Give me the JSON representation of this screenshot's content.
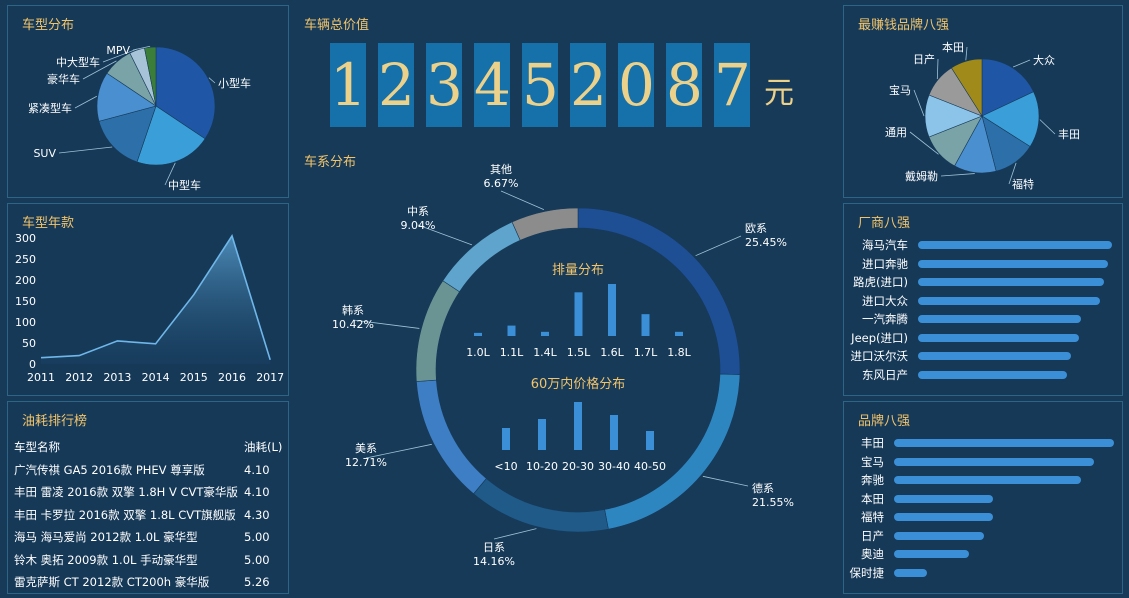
{
  "titles": {
    "car_type": "车型分布",
    "car_year": "车型年款",
    "fuel": "油耗排行榜",
    "total": "车辆总价值",
    "series": "车系分布",
    "displacement": "排量分布",
    "price": "60万内价格分布",
    "top_brands_profit": "最赚钱品牌八强",
    "makers": "厂商八强",
    "brands": "品牌八强"
  },
  "total_value": {
    "digits": [
      "1",
      "2",
      "3",
      "4",
      "5",
      "2",
      "0",
      "8",
      "7"
    ],
    "unit": "元"
  },
  "fuel_table": {
    "headers": [
      "车型名称",
      "油耗(L)"
    ],
    "rows": [
      [
        "广汽传祺 GA5 2016款 PHEV 尊享版",
        "4.10"
      ],
      [
        "丰田 雷凌 2016款 双擎 1.8H V CVT豪华版",
        "4.10"
      ],
      [
        "丰田 卡罗拉 2016款 双擎 1.8L CVT旗舰版",
        "4.30"
      ],
      [
        "海马 海马爱尚 2012款 1.0L 豪华型",
        "5.00"
      ],
      [
        "铃木 奥拓 2009款 1.0L 手动豪华型",
        "5.00"
      ],
      [
        "雷克萨斯 CT 2012款 CT200h 豪华版",
        "5.26"
      ]
    ]
  },
  "chart_data": [
    {
      "id": "car_type",
      "type": "pie",
      "title": "车型分布",
      "categories": [
        "小型车",
        "中型车",
        "SUV",
        "紧凑型车",
        "豪华车",
        "中大型车",
        "MPV"
      ],
      "values": [
        33,
        20,
        15,
        13,
        8,
        4,
        3
      ],
      "colors": [
        "#1f57a6",
        "#3a9fd8",
        "#2d6fa8",
        "#4a8fd0",
        "#7aa3a8",
        "#a7c3d8",
        "#3a7e3a"
      ]
    },
    {
      "id": "car_year",
      "type": "area",
      "title": "车型年款",
      "categories": [
        "2011",
        "2012",
        "2013",
        "2014",
        "2015",
        "2016",
        "2017"
      ],
      "values": [
        15,
        20,
        55,
        48,
        165,
        305,
        10
      ],
      "ylim": [
        0,
        300
      ],
      "yticks": [
        0,
        50,
        100,
        150,
        200,
        250,
        300
      ]
    },
    {
      "id": "series",
      "type": "pie",
      "title": "车系分布",
      "categories": [
        "欧系",
        "德系",
        "日系",
        "美系",
        "韩系",
        "中系",
        "其他"
      ],
      "values": [
        25.45,
        21.55,
        14.16,
        12.71,
        10.42,
        9.04,
        6.67
      ],
      "labels": [
        "25.45%",
        "21.55%",
        "14.16%",
        "12.71%",
        "10.42%",
        "9.04%",
        "6.67%"
      ],
      "colors": [
        "#1e4e93",
        "#2e86c1",
        "#1f5a88",
        "#3d7ec4",
        "#6a9494",
        "#5fa4cc",
        "#8c8c8c"
      ]
    },
    {
      "id": "displacement",
      "type": "bar",
      "title": "排量分布",
      "categories": [
        "1.0L",
        "1.1L",
        "1.4L",
        "1.5L",
        "1.6L",
        "1.7L",
        "1.8L"
      ],
      "values": [
        3,
        10,
        4,
        42,
        50,
        21,
        4
      ]
    },
    {
      "id": "price",
      "type": "bar",
      "title": "60万内价格分布",
      "categories": [
        "<10",
        "10-20",
        "20-30",
        "30-40",
        "40-50"
      ],
      "values": [
        22,
        31,
        48,
        35,
        19
      ]
    },
    {
      "id": "profit_brands",
      "type": "pie",
      "title": "最赚钱品牌八强",
      "categories": [
        "大众",
        "丰田",
        "福特",
        "戴姆勒",
        "通用",
        "宝马",
        "日产",
        "本田"
      ],
      "values": [
        18,
        16,
        12,
        12,
        11,
        12,
        10,
        9
      ],
      "colors": [
        "#1f57a6",
        "#3a9fd8",
        "#2d6fa8",
        "#4a8fd0",
        "#7aa3a8",
        "#8bc4e8",
        "#9a9a9a",
        "#a08b1a"
      ]
    },
    {
      "id": "makers",
      "type": "bar",
      "title": "厂商八强",
      "categories": [
        "海马汽车",
        "进口奔驰",
        "路虎(进口)",
        "进口大众",
        "一汽奔腾",
        "Jeep(进口)",
        "进口沃尔沃",
        "东风日产"
      ],
      "values": [
        100,
        98,
        96,
        94,
        84,
        83,
        79,
        77
      ]
    },
    {
      "id": "brands",
      "type": "bar",
      "title": "品牌八强",
      "categories": [
        "丰田",
        "宝马",
        "奔驰",
        "本田",
        "福特",
        "日产",
        "奥迪",
        "保时捷"
      ],
      "values": [
        100,
        91,
        85,
        45,
        45,
        41,
        34,
        15
      ]
    }
  ]
}
